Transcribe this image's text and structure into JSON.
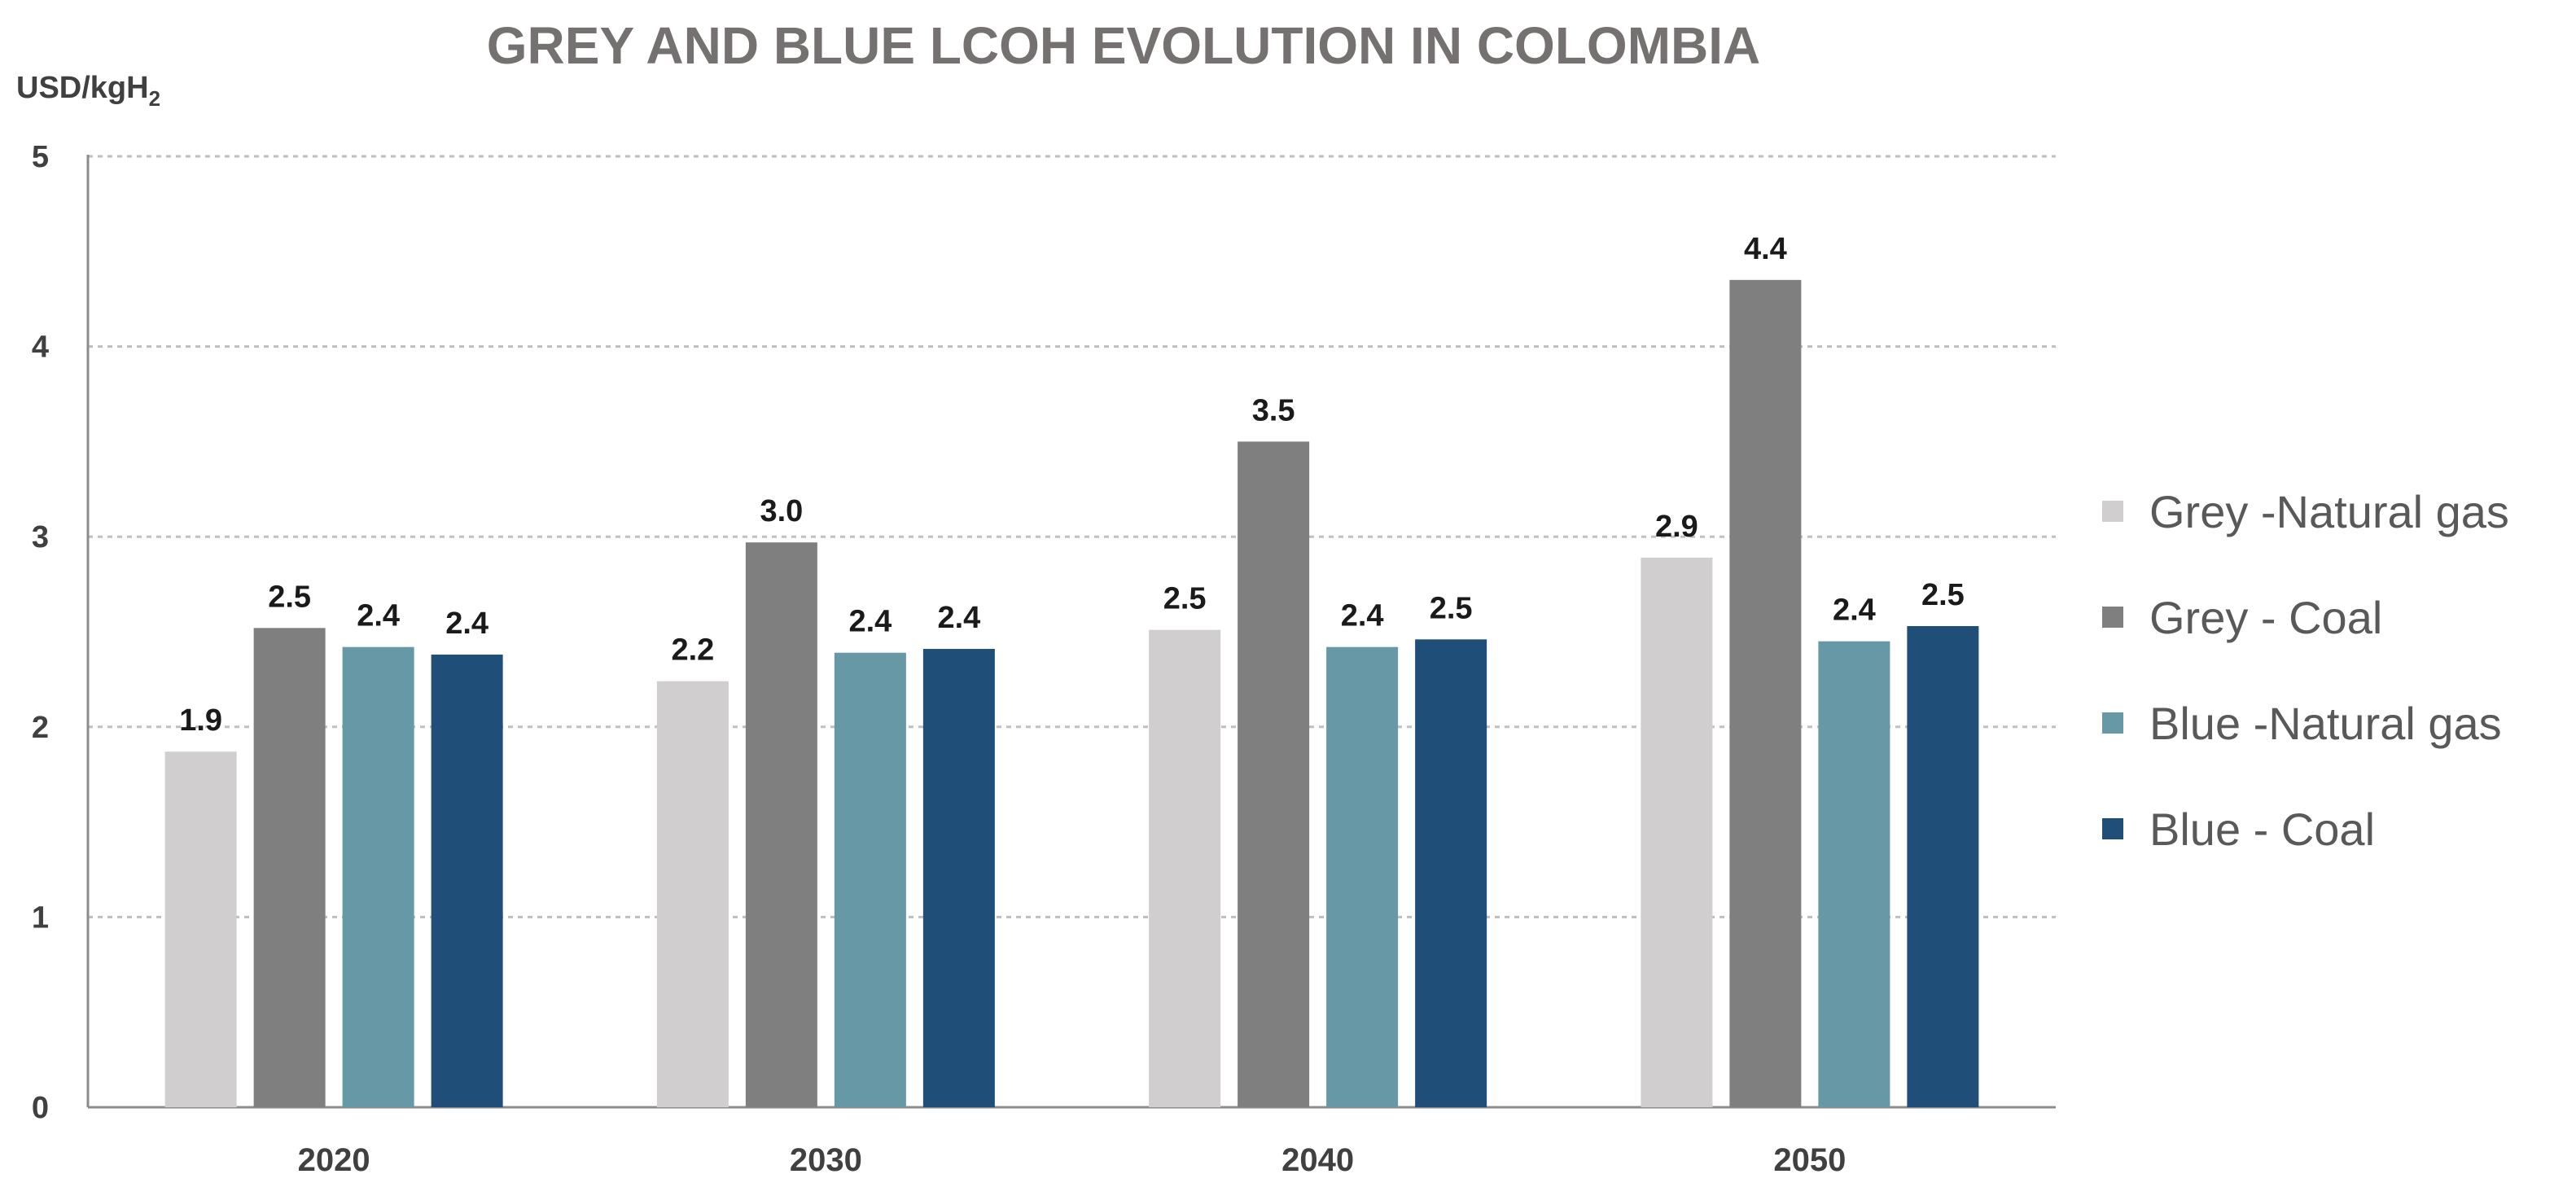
{
  "chart_data": {
    "type": "bar",
    "title": "GREY AND BLUE LCOH EVOLUTION IN COLOMBIA",
    "ylabel": "USD/kgH",
    "ylabel_subscript": "2",
    "xlabel": "",
    "ylim": [
      0,
      5
    ],
    "yticks": [
      0,
      1,
      2,
      3,
      4,
      5
    ],
    "ytick_labels": [
      "0",
      "1",
      "2",
      "3",
      "4",
      "5"
    ],
    "grid": true,
    "legend_position": "right",
    "categories": [
      "2020",
      "2030",
      "2040",
      "2050"
    ],
    "series": [
      {
        "name": "Grey -Natural gas",
        "color": "#d0cece",
        "values": [
          1.87,
          2.24,
          2.51,
          2.89
        ],
        "labels": [
          "1.9",
          "2.2",
          "2.5",
          "2.9"
        ]
      },
      {
        "name": "Grey - Coal",
        "color": "#7f7f7f",
        "values": [
          2.52,
          2.97,
          3.5,
          4.35
        ],
        "labels": [
          "2.5",
          "3.0",
          "3.5",
          "4.4"
        ]
      },
      {
        "name": "Blue -Natural gas",
        "color": "#6699a5",
        "values": [
          2.42,
          2.39,
          2.42,
          2.45
        ],
        "labels": [
          "2.4",
          "2.4",
          "2.4",
          "2.4"
        ]
      },
      {
        "name": "Blue - Coal",
        "color": "#1f4e79",
        "values": [
          2.38,
          2.41,
          2.46,
          2.53
        ],
        "labels": [
          "2.4",
          "2.4",
          "2.5",
          "2.5"
        ]
      }
    ]
  }
}
